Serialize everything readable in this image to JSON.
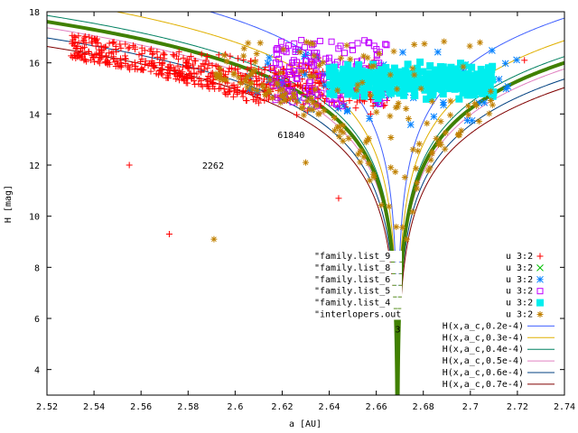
{
  "chart_data": {
    "type": "scatter",
    "xlabel": "a [AU]",
    "ylabel": "H [mag]",
    "xlim": [
      2.52,
      2.74
    ],
    "ylim": [
      3,
      18
    ],
    "x_ticks": [
      "2.52",
      "2.54",
      "2.56",
      "2.58",
      "2.6",
      "2.62",
      "2.64",
      "2.66",
      "2.68",
      "2.7",
      "2.72",
      "2.74"
    ],
    "y_ticks": [
      "4",
      "6",
      "8",
      "10",
      "12",
      "14",
      "16",
      "18"
    ],
    "annotations": [
      {
        "text": "2262",
        "x": 2.586,
        "y": 12.0
      },
      {
        "text": "61840",
        "x": 2.618,
        "y": 13.2
      },
      {
        "text": "3",
        "x": 2.668,
        "y": 5.6
      }
    ],
    "legend_position": "bottom-right",
    "scatter_series": [
      {
        "name": "\"family.list_9",
        "cols": "u 3:2",
        "marker": "plus",
        "color": "#ff0000",
        "count": 650,
        "xrange": [
          2.53,
          2.665
        ],
        "yrange": [
          12.0,
          17.2
        ]
      },
      {
        "name": "\"family.list_8",
        "cols": "u 3:2",
        "marker": "cross",
        "color": "#00c000",
        "count": 0
      },
      {
        "name": "\"family.list_6",
        "cols": "u 3:2",
        "marker": "star",
        "color": "#0080ff",
        "count": 60,
        "xrange": [
          2.6,
          2.72
        ],
        "yrange": [
          13.5,
          16.5
        ]
      },
      {
        "name": "\"family.list_5",
        "cols": "u 3:2",
        "marker": "square",
        "color": "#c000ff",
        "count": 160,
        "xrange": [
          2.615,
          2.665
        ],
        "yrange": [
          14.3,
          16.9
        ]
      },
      {
        "name": "\"family.list_4",
        "cols": "u 3:2",
        "marker": "filled-square",
        "color": "#00eeee",
        "count": 450,
        "xrange": [
          2.64,
          2.71
        ],
        "yrange": [
          14.0,
          16.9
        ]
      },
      {
        "name": "\"interlopers.out",
        "cols": "u 3:2",
        "marker": "circle-plus",
        "color": "#c08000",
        "count": 180,
        "xrange": [
          2.59,
          2.71
        ],
        "yrange": [
          9.1,
          16.9
        ]
      }
    ],
    "outliers": [
      {
        "series": 0,
        "x": 2.572,
        "y": 9.3
      },
      {
        "series": 0,
        "x": 2.644,
        "y": 10.7
      },
      {
        "series": 0,
        "x": 2.555,
        "y": 12.0
      },
      {
        "series": 5,
        "x": 2.591,
        "y": 9.1
      },
      {
        "series": 5,
        "x": 2.63,
        "y": 12.1
      },
      {
        "series": 0,
        "x": 2.723,
        "y": 16.1
      }
    ],
    "curve_series": [
      {
        "name": "H(x,a_c,0.2e-4)",
        "color": "#4060ff",
        "c": 2e-05,
        "width": 1
      },
      {
        "name": "H(x,a_c,0.3e-4)",
        "color": "#e0b000",
        "c": 3e-05,
        "width": 1
      },
      {
        "name": "H(x,a_c,0.4e-4)",
        "color": "#008060",
        "c": 4e-05,
        "width": 1
      },
      {
        "name": "H(x,a_c,0.5e-4)",
        "color": "#e080c0",
        "c": 5e-05,
        "width": 1
      },
      {
        "name": "H(x,a_c,0.6e-4)",
        "color": "#004080",
        "c": 6e-05,
        "width": 1
      },
      {
        "name": "H(x,a_c,0.7e-4)",
        "color": "#800000",
        "c": 7e-05,
        "width": 1
      }
    ],
    "highlight_curve": {
      "color": "#408000",
      "c": 4.48e-05,
      "width": 4
    },
    "a_c": 2.669
  }
}
